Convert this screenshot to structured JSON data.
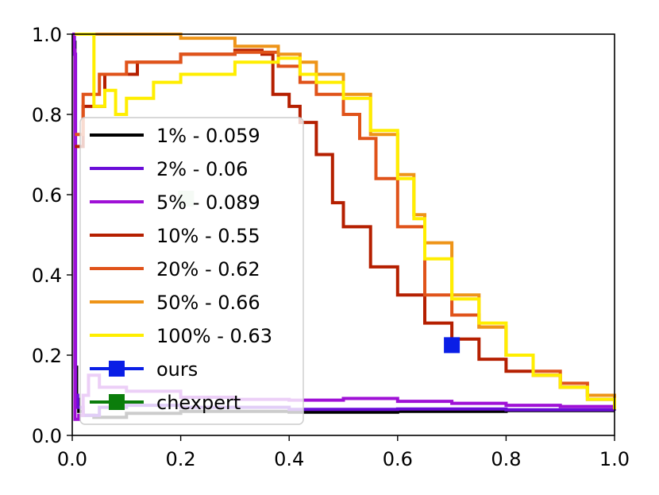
{
  "chart_data": {
    "type": "line",
    "title": "",
    "xlabel": "",
    "ylabel": "",
    "xlim": [
      0.0,
      1.0
    ],
    "ylim": [
      0.0,
      1.0
    ],
    "xticks": [
      "0.0",
      "0.2",
      "0.4",
      "0.6",
      "0.8",
      "1.0"
    ],
    "yticks": [
      "0.0",
      "0.2",
      "0.4",
      "0.6",
      "0.8",
      "1.0"
    ],
    "grid": false,
    "legend_position": "left",
    "series": [
      {
        "name": "1% - 0.059",
        "color": "#000000",
        "points": [
          [
            0.0,
            1.0
          ],
          [
            0.003,
            0.98
          ],
          [
            0.005,
            0.17
          ],
          [
            0.008,
            0.09
          ],
          [
            0.012,
            0.06
          ],
          [
            0.02,
            0.05
          ],
          [
            0.04,
            0.045
          ],
          [
            0.1,
            0.055
          ],
          [
            0.2,
            0.06
          ],
          [
            0.4,
            0.058
          ],
          [
            0.6,
            0.06
          ],
          [
            0.8,
            0.062
          ],
          [
            1.0,
            0.062
          ]
        ]
      },
      {
        "name": "2% - 0.06",
        "color": "#6a0dd8",
        "points": [
          [
            0.0,
            1.0
          ],
          [
            0.004,
            0.95
          ],
          [
            0.006,
            0.1
          ],
          [
            0.01,
            0.07
          ],
          [
            0.02,
            0.05
          ],
          [
            0.05,
            0.07
          ],
          [
            0.1,
            0.075
          ],
          [
            0.2,
            0.07
          ],
          [
            0.4,
            0.065
          ],
          [
            0.6,
            0.066
          ],
          [
            0.8,
            0.064
          ],
          [
            1.0,
            0.062
          ]
        ]
      },
      {
        "name": "5% - 0.089",
        "color": "#9f10d6",
        "points": [
          [
            0.0,
            1.0
          ],
          [
            0.003,
            0.96
          ],
          [
            0.005,
            0.04
          ],
          [
            0.012,
            0.05
          ],
          [
            0.02,
            0.1
          ],
          [
            0.03,
            0.15
          ],
          [
            0.05,
            0.12
          ],
          [
            0.1,
            0.11
          ],
          [
            0.2,
            0.095
          ],
          [
            0.3,
            0.09
          ],
          [
            0.4,
            0.088
          ],
          [
            0.5,
            0.092
          ],
          [
            0.6,
            0.085
          ],
          [
            0.7,
            0.08
          ],
          [
            0.8,
            0.075
          ],
          [
            0.9,
            0.072
          ],
          [
            1.0,
            0.07
          ]
        ]
      },
      {
        "name": "10% - 0.55",
        "color": "#b51f00",
        "points": [
          [
            0.005,
            0.72
          ],
          [
            0.02,
            0.82
          ],
          [
            0.06,
            0.9
          ],
          [
            0.12,
            0.93
          ],
          [
            0.2,
            0.95
          ],
          [
            0.3,
            0.96
          ],
          [
            0.35,
            0.95
          ],
          [
            0.37,
            0.85
          ],
          [
            0.4,
            0.82
          ],
          [
            0.42,
            0.78
          ],
          [
            0.45,
            0.7
          ],
          [
            0.48,
            0.58
          ],
          [
            0.5,
            0.52
          ],
          [
            0.55,
            0.42
          ],
          [
            0.6,
            0.35
          ],
          [
            0.65,
            0.28
          ],
          [
            0.7,
            0.24
          ],
          [
            0.75,
            0.19
          ],
          [
            0.8,
            0.16
          ],
          [
            0.85,
            0.15
          ],
          [
            0.9,
            0.12
          ],
          [
            0.95,
            0.09
          ],
          [
            1.0,
            0.065
          ]
        ]
      },
      {
        "name": "20% - 0.62",
        "color": "#e0531a",
        "points": [
          [
            0.005,
            0.75
          ],
          [
            0.02,
            0.85
          ],
          [
            0.05,
            0.9
          ],
          [
            0.1,
            0.93
          ],
          [
            0.2,
            0.95
          ],
          [
            0.3,
            0.955
          ],
          [
            0.38,
            0.92
          ],
          [
            0.42,
            0.88
          ],
          [
            0.45,
            0.85
          ],
          [
            0.5,
            0.8
          ],
          [
            0.53,
            0.74
          ],
          [
            0.56,
            0.64
          ],
          [
            0.6,
            0.52
          ],
          [
            0.65,
            0.35
          ],
          [
            0.7,
            0.3
          ],
          [
            0.75,
            0.27
          ],
          [
            0.8,
            0.2
          ],
          [
            0.85,
            0.16
          ],
          [
            0.9,
            0.13
          ],
          [
            0.95,
            0.1
          ],
          [
            1.0,
            0.07
          ]
        ]
      },
      {
        "name": "50% - 0.66",
        "color": "#ee9418",
        "points": [
          [
            0.005,
            1.0
          ],
          [
            0.1,
            1.0
          ],
          [
            0.15,
            1.0
          ],
          [
            0.2,
            0.99
          ],
          [
            0.3,
            0.97
          ],
          [
            0.38,
            0.95
          ],
          [
            0.42,
            0.93
          ],
          [
            0.45,
            0.9
          ],
          [
            0.5,
            0.85
          ],
          [
            0.55,
            0.75
          ],
          [
            0.6,
            0.65
          ],
          [
            0.63,
            0.55
          ],
          [
            0.65,
            0.48
          ],
          [
            0.7,
            0.35
          ],
          [
            0.75,
            0.27
          ],
          [
            0.8,
            0.2
          ],
          [
            0.85,
            0.15
          ],
          [
            0.9,
            0.12
          ],
          [
            0.95,
            0.1
          ],
          [
            1.0,
            0.07
          ]
        ]
      },
      {
        "name": "100% - 0.63",
        "color": "#ffee00",
        "points": [
          [
            0.005,
            1.0
          ],
          [
            0.03,
            1.0
          ],
          [
            0.04,
            0.82
          ],
          [
            0.06,
            0.86
          ],
          [
            0.08,
            0.8
          ],
          [
            0.1,
            0.84
          ],
          [
            0.15,
            0.88
          ],
          [
            0.2,
            0.9
          ],
          [
            0.3,
            0.93
          ],
          [
            0.38,
            0.94
          ],
          [
            0.42,
            0.9
          ],
          [
            0.45,
            0.88
          ],
          [
            0.5,
            0.84
          ],
          [
            0.55,
            0.76
          ],
          [
            0.6,
            0.64
          ],
          [
            0.63,
            0.54
          ],
          [
            0.65,
            0.44
          ],
          [
            0.7,
            0.34
          ],
          [
            0.75,
            0.28
          ],
          [
            0.8,
            0.2
          ],
          [
            0.85,
            0.15
          ],
          [
            0.9,
            0.12
          ],
          [
            0.95,
            0.09
          ],
          [
            1.0,
            0.065
          ]
        ]
      }
    ],
    "markers": [
      {
        "name": "ours",
        "color": "#0a1ee6",
        "x": 0.7,
        "y": 0.225,
        "marker": "square"
      },
      {
        "name": "chexpert",
        "color": "#0b7d0b",
        "x": 0.21,
        "y": 0.59,
        "marker": "square",
        "alpha": 0.2
      }
    ]
  }
}
